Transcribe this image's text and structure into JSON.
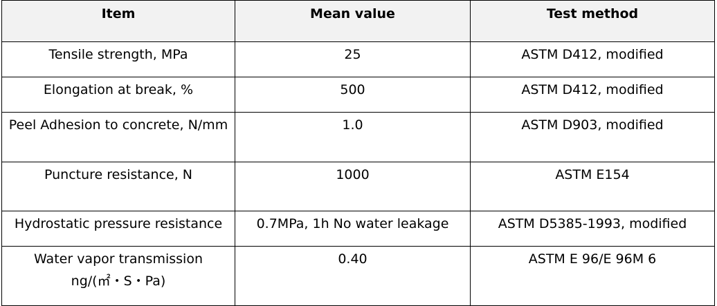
{
  "table": {
    "headers": [
      "Item",
      "Mean value",
      "Test method"
    ],
    "rows": [
      [
        "Tensile strength, MPa",
        "25",
        "ASTM D412, modified"
      ],
      [
        "Elongation at break, %",
        "500",
        "ASTM D412, modified"
      ],
      [
        "Peel Adhesion to concrete, N/mm",
        "1.0",
        "ASTM D903, modified"
      ],
      [
        "Puncture resistance, N",
        "1000",
        "ASTM E154"
      ],
      [
        "Hydrostatic pressure resistance",
        "0.7MPa, 1h No water leakage",
        "ASTM D5385-1993, modified"
      ],
      [
        "Water vapor transmission",
        "0.40",
        "ASTM E 96/E 96M 6"
      ]
    ],
    "row6_item_line2": "ng/(㎡・S・Pa)"
  }
}
